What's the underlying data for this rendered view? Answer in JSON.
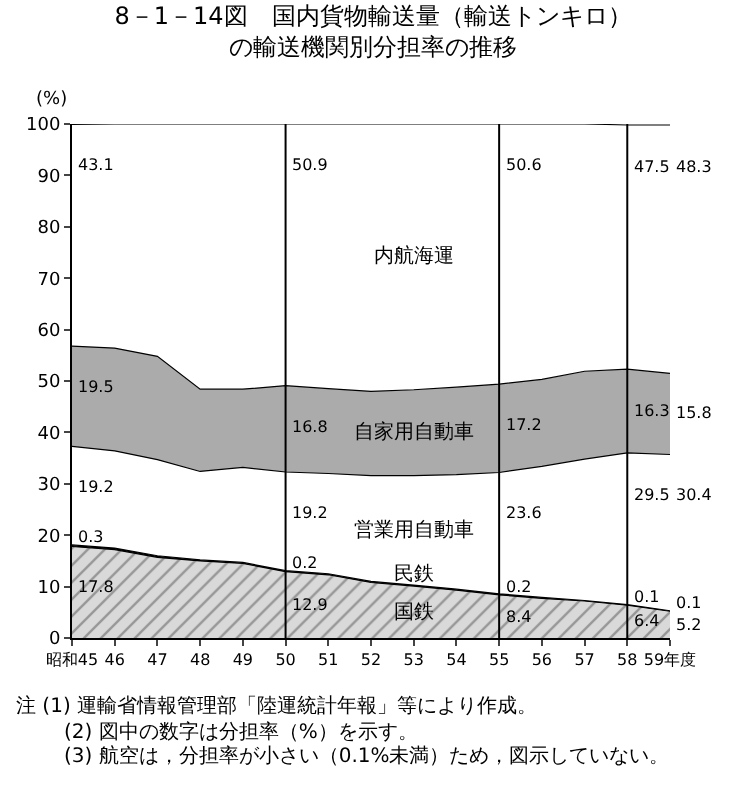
{
  "chart_data": {
    "type": "area",
    "stacked": true,
    "title": "8－1－14図　国内貨物輸送量（輸送トンキロ）",
    "subtitle": "の輸送機関別分担率の推移",
    "ylabel": "(%)",
    "x": [
      45,
      46,
      47,
      48,
      49,
      50,
      51,
      52,
      53,
      54,
      55,
      56,
      57,
      58,
      59
    ],
    "xlim": [
      45,
      59
    ],
    "xticks": [
      {
        "value": 45,
        "label": "昭和45"
      },
      46,
      47,
      48,
      49,
      50,
      51,
      52,
      53,
      54,
      55,
      56,
      57,
      58,
      {
        "value": 59,
        "label": "59年度"
      }
    ],
    "ylim": [
      0,
      100
    ],
    "yticks": [
      0,
      10,
      20,
      30,
      40,
      50,
      60,
      70,
      80,
      90,
      100
    ],
    "series": [
      {
        "name": "国鉄",
        "color": "#d9d9d9",
        "values": [
          17.8,
          17.2,
          15.7,
          15.0,
          14.5,
          12.9,
          12.3,
          10.8,
          10.1,
          9.3,
          8.4,
          7.7,
          7.2,
          6.4,
          5.2
        ],
        "value_labels": [
          "17.8",
          null,
          null,
          null,
          null,
          "12.9",
          null,
          null,
          null,
          null,
          "8.4",
          null,
          null,
          "6.4",
          "5.2"
        ]
      },
      {
        "name": "民鉄",
        "color": "#000000",
        "values": [
          0.3,
          0.3,
          0.3,
          0.2,
          0.2,
          0.2,
          0.2,
          0.2,
          0.2,
          0.2,
          0.2,
          0.2,
          0.1,
          0.1,
          0.1
        ],
        "value_labels": [
          "0.3",
          null,
          null,
          null,
          null,
          "0.2",
          null,
          null,
          null,
          null,
          "0.2",
          null,
          null,
          "0.1",
          "0.1"
        ]
      },
      {
        "name": "営業用自動車",
        "color": "#ffffff",
        "values": [
          19.2,
          18.9,
          18.7,
          17.2,
          18.5,
          19.2,
          19.5,
          20.6,
          21.3,
          22.3,
          23.6,
          25.5,
          27.5,
          29.5,
          30.4
        ],
        "value_labels": [
          "19.2",
          null,
          null,
          null,
          null,
          "19.2",
          null,
          null,
          null,
          null,
          "23.6",
          null,
          null,
          "29.5",
          "30.4"
        ]
      },
      {
        "name": "自家用自動車",
        "color": "#ababab",
        "values": [
          19.5,
          20.0,
          20.1,
          16.0,
          15.2,
          16.8,
          16.5,
          16.4,
          16.7,
          17.0,
          17.2,
          16.9,
          17.1,
          16.3,
          15.8
        ],
        "value_labels": [
          "19.5",
          null,
          null,
          null,
          null,
          "16.8",
          null,
          null,
          null,
          null,
          "17.2",
          null,
          null,
          "16.3",
          "15.8"
        ]
      },
      {
        "name": "内航海運",
        "color": "#ffffff",
        "values": [
          43.1,
          43.6,
          45.2,
          51.6,
          51.6,
          50.9,
          51.5,
          52.0,
          51.7,
          51.2,
          50.6,
          49.7,
          48.1,
          47.5,
          48.3
        ],
        "value_labels": [
          "43.1",
          null,
          null,
          null,
          null,
          "50.9",
          null,
          null,
          null,
          null,
          "50.6",
          null,
          null,
          "47.5",
          "48.3"
        ]
      }
    ],
    "ref_lines": [
      {
        "axis": "x",
        "value": 50,
        "label": null
      },
      {
        "axis": "x",
        "value": 55,
        "label": null
      },
      {
        "axis": "x",
        "value": 58,
        "label": null
      }
    ],
    "annotations": [
      "注 (1) 運輸省情報管理部「陸運統計年報」等により作成。",
      "(2) 図中の数字は分担率（%）を示す。",
      "(3) 航空は，分担率が小さい（0.1%未満）ため，図示していない。"
    ],
    "legend": false
  }
}
